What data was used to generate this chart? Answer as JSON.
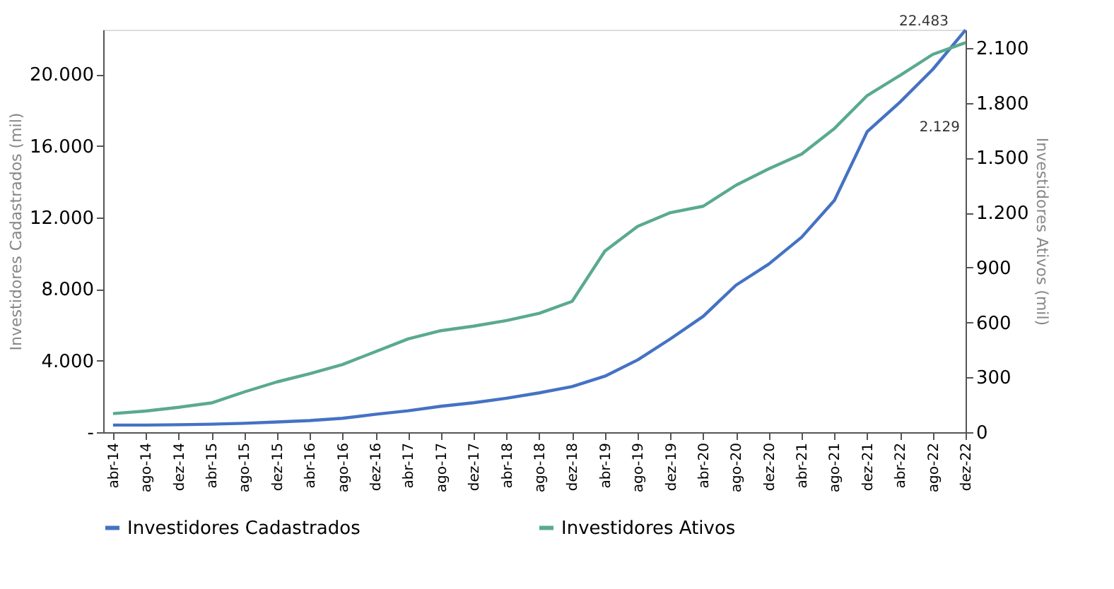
{
  "chart_data": {
    "type": "line",
    "categories": [
      "abr-14",
      "ago-14",
      "dez-14",
      "abr-15",
      "ago-15",
      "dez-15",
      "abr-16",
      "ago-16",
      "dez-16",
      "abr-17",
      "ago-17",
      "dez-17",
      "abr-18",
      "ago-18",
      "dez-18",
      "abr-19",
      "ago-19",
      "dez-19",
      "abr-20",
      "ago-20",
      "dez-20",
      "abr-21",
      "ago-21",
      "dez-21",
      "abr-22",
      "ago-22",
      "dez-22"
    ],
    "series": [
      {
        "name": "Investidores Cadastrados",
        "color": "#4472c4",
        "values": [
          400,
          400,
          420,
          450,
          500,
          570,
          650,
          780,
          1000,
          1200,
          1450,
          1650,
          1900,
          2200,
          2550,
          3130,
          4040,
          5220,
          6480,
          8220,
          9400,
          10900,
          12960,
          16800,
          18450,
          20280,
          22483
        ]
      },
      {
        "name": "Investidores Ativos",
        "color": "#5aaa8e",
        "axis": "y2",
        "values": [
          102,
          116,
          136,
          160,
          220,
          275,
          320,
          370,
          440,
          510,
          555,
          580,
          610,
          650,
          715,
          990,
          1125,
          1200,
          1235,
          1350,
          1440,
          1520,
          1660,
          1840,
          1950,
          2065,
          2129
        ]
      }
    ],
    "ylabel": "Investidores Cadastrados (mil)",
    "y2label": "Investidores Ativos (mil)",
    "ylim": [
      0,
      22500
    ],
    "yticks": [
      {
        "value": 0,
        "label": "-"
      },
      {
        "value": 4000,
        "label": "4.000"
      },
      {
        "value": 8000,
        "label": "8.000"
      },
      {
        "value": 12000,
        "label": "12.000"
      },
      {
        "value": 16000,
        "label": "16.000"
      },
      {
        "value": 20000,
        "label": "20.000"
      }
    ],
    "y2lim": [
      0,
      2200
    ],
    "y2ticks": [
      0,
      300,
      600,
      900,
      {
        "value": 1200,
        "label": "1.200"
      },
      {
        "value": 1500,
        "label": "1.500"
      },
      {
        "value": 1800,
        "label": "1.800"
      },
      {
        "value": 2100,
        "label": "2.100"
      }
    ],
    "annotations": [
      "22.483",
      "2.129"
    ],
    "legend": "bottom",
    "grid": false
  }
}
